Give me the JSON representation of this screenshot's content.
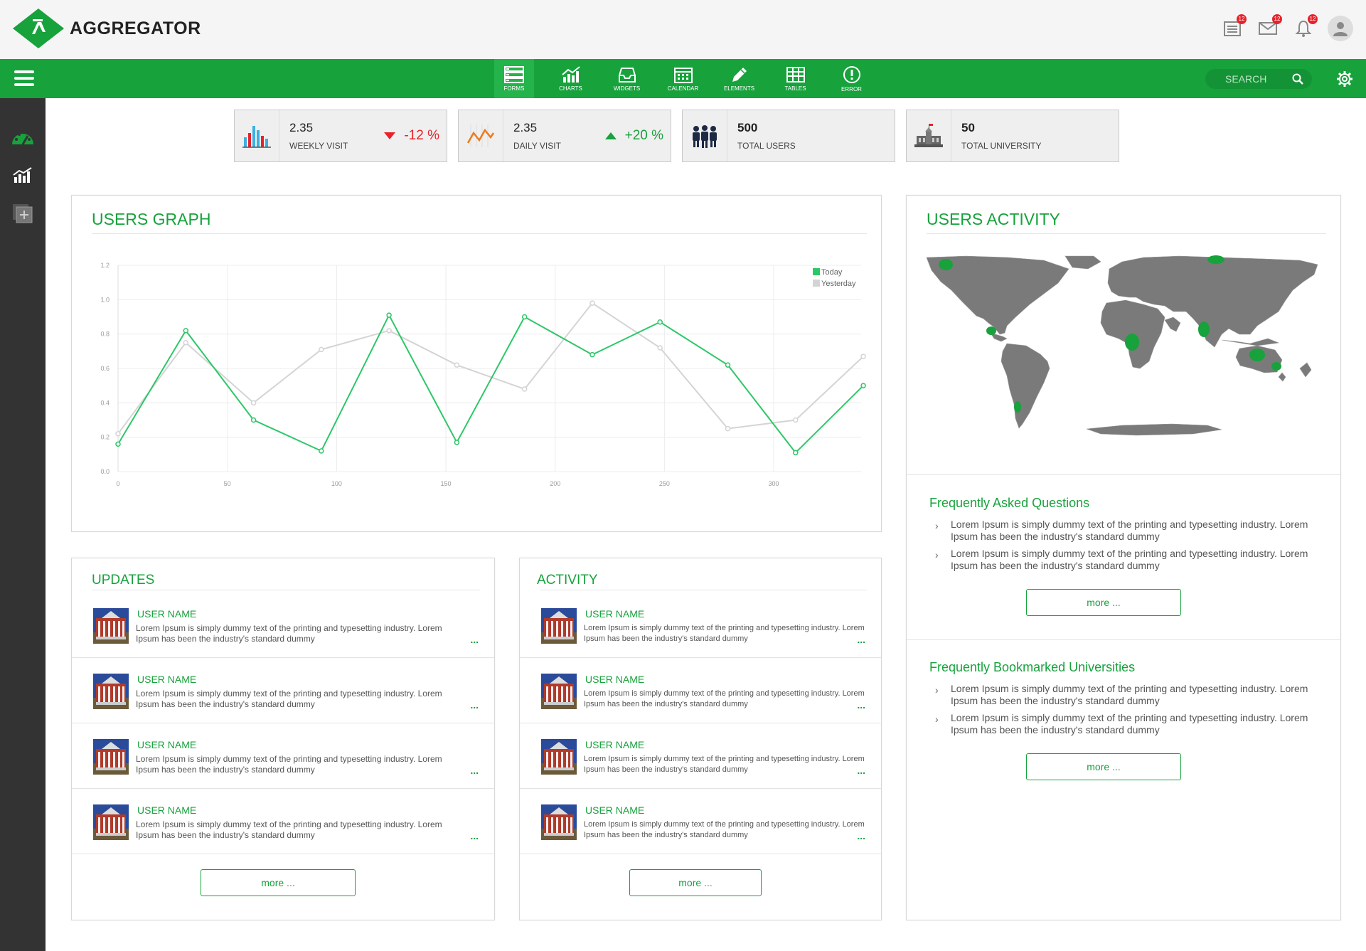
{
  "app": {
    "title": "AGGREGATOR"
  },
  "header": {
    "notifications": [
      {
        "icon": "list-icon",
        "badge": "12"
      },
      {
        "icon": "mail-icon",
        "badge": "12"
      },
      {
        "icon": "bell-icon",
        "badge": "12"
      }
    ]
  },
  "nav": {
    "items": [
      "FORMS",
      "CHARTS",
      "WIDGETS",
      "CALENDAR",
      "ELEMENTS",
      "TABLES",
      "ERROR"
    ],
    "search_placeholder": "SEARCH"
  },
  "stats": [
    {
      "value": "2.35",
      "label": "WEEKLY VISIT",
      "change": "-12 %",
      "change_color": "#e8212a"
    },
    {
      "value": "2.35",
      "label": "DAILY  VISIT",
      "change": "+20 %",
      "change_color": "#17a23c"
    },
    {
      "value": "500",
      "label": "TOTAL USERS"
    },
    {
      "value": "50",
      "label": "TOTAL UNIVERSITY"
    }
  ],
  "users_graph": {
    "title": "USERS GRAPH"
  },
  "chart_data": {
    "type": "line",
    "title": "USERS GRAPH",
    "xlim": [
      0,
      340
    ],
    "ylim": [
      0,
      1.2
    ],
    "x_ticks": [
      "0",
      "50",
      "100",
      "150",
      "200",
      "250",
      "300"
    ],
    "y_ticks": [
      "0.0",
      "0.2",
      "0.4",
      "0.6",
      "0.8",
      "1.0",
      "1.2"
    ],
    "x": [
      0,
      31,
      62,
      93,
      124,
      155,
      186,
      217,
      248,
      279,
      310,
      341
    ],
    "series": [
      {
        "name": "Today",
        "color": "#2dc768",
        "values": [
          0.16,
          0.82,
          0.3,
          0.12,
          0.91,
          0.17,
          0.9,
          0.68,
          0.87,
          0.62,
          0.11,
          0.5
        ]
      },
      {
        "name": "Yesterday",
        "color": "#d4d4d4",
        "values": [
          0.22,
          0.75,
          0.4,
          0.71,
          0.82,
          0.62,
          0.48,
          0.98,
          0.72,
          0.25,
          0.3,
          0.67
        ]
      }
    ],
    "legend": "top-right",
    "grid": true
  },
  "updates": {
    "title": "UPDATES",
    "items": [
      {
        "name": "USER NAME",
        "text": "Lorem Ipsum is simply dummy text of the printing and typesetting industry. Lorem Ipsum has been the industry's standard dummy",
        "more": "..."
      },
      {
        "name": "USER NAME",
        "text": "Lorem Ipsum is simply dummy text of the printing and typesetting industry. Lorem Ipsum has been the industry's standard dummy",
        "more": "..."
      },
      {
        "name": "USER NAME",
        "text": "Lorem Ipsum is simply dummy text of the printing and typesetting industry. Lorem Ipsum has been the industry's standard dummy",
        "more": "..."
      },
      {
        "name": "USER NAME",
        "text": "Lorem Ipsum is simply dummy text of the printing and typesetting industry. Lorem Ipsum has been the industry's standard dummy",
        "more": "..."
      }
    ],
    "more": "more ..."
  },
  "activity": {
    "title": "ACTIVITY",
    "items": [
      {
        "name": "USER NAME",
        "text": "Lorem Ipsum is simply dummy text of the printing and typesetting industry. Lorem Ipsum has been the industry's standard dummy",
        "more": "..."
      },
      {
        "name": "USER NAME",
        "text": "Lorem Ipsum is simply dummy text of the printing and typesetting industry. Lorem Ipsum has been the industry's standard dummy",
        "more": "..."
      },
      {
        "name": "USER NAME",
        "text": "Lorem Ipsum is simply dummy text of the printing and typesetting industry. Lorem Ipsum has been the industry's standard dummy",
        "more": "..."
      },
      {
        "name": "USER NAME",
        "text": "Lorem Ipsum is simply dummy text of the printing and typesetting industry. Lorem Ipsum has been the industry's standard dummy",
        "more": "..."
      }
    ],
    "more": "more ..."
  },
  "users_activity": {
    "title": "USERS ACTIVITY",
    "faq": {
      "title": "Frequently Asked Questions",
      "items": [
        "Lorem Ipsum is simply dummy text of the printing and typesetting industry. Lorem Ipsum has been the industry's standard dummy",
        "Lorem Ipsum is simply dummy text of the printing and typesetting industry. Lorem Ipsum has been the industry's standard dummy"
      ],
      "more": "more ..."
    },
    "bookmarks": {
      "title": "Frequently Bookmarked Universities",
      "items": [
        "Lorem Ipsum is simply dummy text of the printing and typesetting industry. Lorem Ipsum has been the industry's standard dummy",
        "Lorem Ipsum is simply dummy text of the printing and typesetting industry. Lorem Ipsum has been the industry's standard dummy"
      ],
      "more": "more ..."
    }
  },
  "colors": {
    "accent": "#17a23c",
    "sidebar": "#333333",
    "down": "#e8212a"
  }
}
